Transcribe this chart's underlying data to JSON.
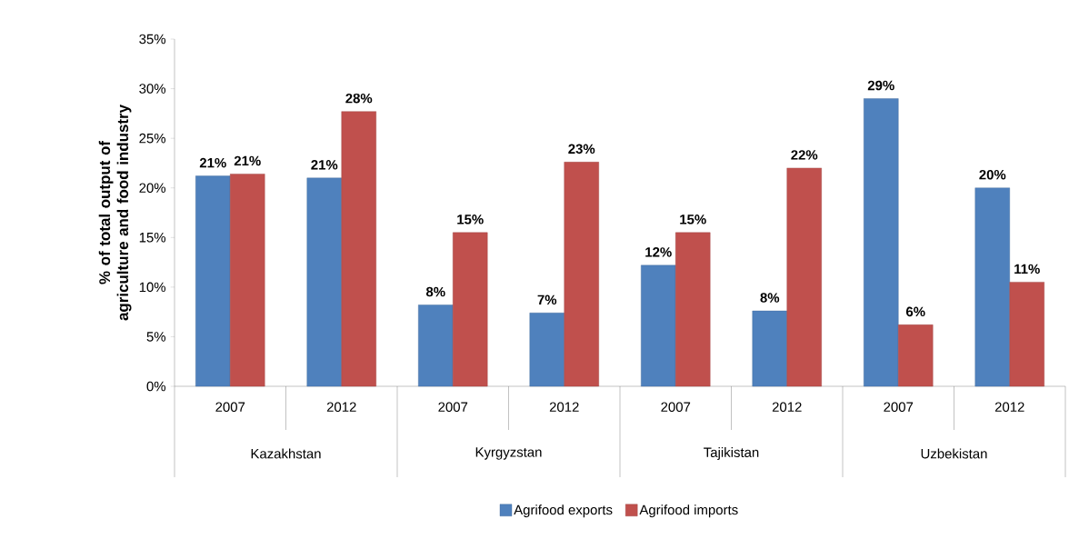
{
  "chart_data": {
    "type": "bar",
    "ylabel": "% of total output of agriculture and food industry",
    "categories": [
      "2007",
      "2012",
      "2007",
      "2012",
      "2007",
      "2012",
      "2007",
      "2012"
    ],
    "annotations": [
      "Kazakhstan",
      "Kyrgyzstan",
      "Tajikistan",
      "Uzbekistan"
    ],
    "series": [
      {
        "name": "Agrifood exports",
        "color": "#4f81bd",
        "values": [
          21.2,
          21.0,
          8.2,
          7.4,
          12.2,
          7.6,
          29.0,
          20.0
        ],
        "value_labels": [
          "21%",
          "21%",
          "8%",
          "7%",
          "12%",
          "8%",
          "29%",
          "20%"
        ]
      },
      {
        "name": "Agrifood imports",
        "color": "#c0504d",
        "values": [
          21.4,
          27.7,
          15.5,
          22.6,
          15.5,
          22.0,
          6.2,
          10.5
        ],
        "value_labels": [
          "21%",
          "28%",
          "15%",
          "23%",
          "15%",
          "22%",
          "6%",
          "11%"
        ]
      }
    ],
    "ylim": [
      0,
      35
    ],
    "yticks": [
      {
        "value": 0,
        "label": "0%"
      },
      {
        "value": 5,
        "label": "5%"
      },
      {
        "value": 10,
        "label": "10%"
      },
      {
        "value": 15,
        "label": "15%"
      },
      {
        "value": 20,
        "label": "20%"
      },
      {
        "value": 25,
        "label": "25%"
      },
      {
        "value": 30,
        "label": "30%"
      },
      {
        "value": 35,
        "label": "35%"
      }
    ],
    "legend": "bottom",
    "grid": false
  }
}
